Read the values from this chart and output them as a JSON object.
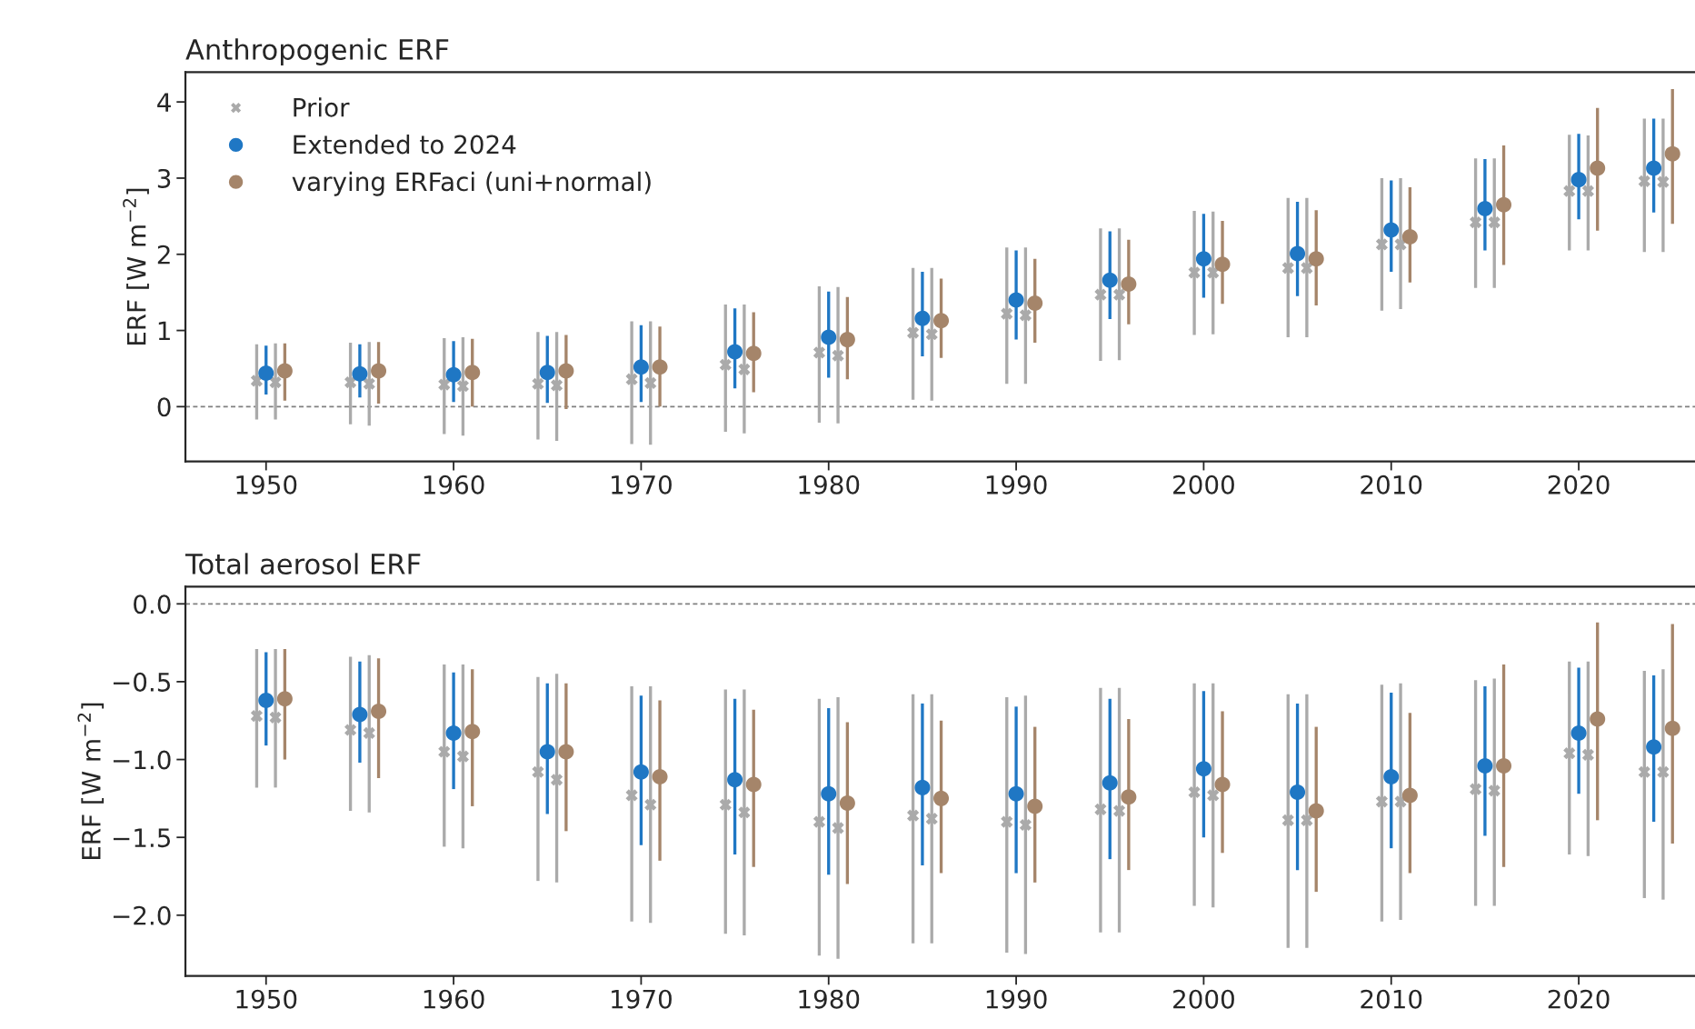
{
  "chart_data": [
    {
      "type": "scatter",
      "title": "Anthropogenic ERF",
      "ylabel": "ERF [W m$^{−2}$]",
      "xlim": [
        1945.7,
        2026.2
      ],
      "ylim": [
        -0.72,
        4.39
      ],
      "xticks": [
        1950,
        1960,
        1970,
        1980,
        1990,
        2000,
        2010,
        2020
      ],
      "yticks": [
        0,
        1,
        2,
        3,
        4
      ],
      "legend": "top left",
      "grid": false,
      "ref_lines": [
        {
          "axis": "y",
          "value": 0,
          "color": "#808080",
          "line_style": "dashed"
        }
      ],
      "series": [
        {
          "name": "Prior",
          "color": "#aaaaaa",
          "marker": "cross",
          "x": [
            1949.5,
            1954.5,
            1959.5,
            1964.5,
            1969.5,
            1974.5,
            1979.5,
            1984.5,
            1989.5,
            1994.5,
            1999.5,
            2004.5,
            2009.5,
            2014.5,
            2019.5,
            2023.5
          ],
          "values": [
            0.34,
            0.32,
            0.29,
            0.3,
            0.36,
            0.55,
            0.71,
            0.97,
            1.22,
            1.47,
            1.76,
            1.82,
            2.13,
            2.42,
            2.83,
            2.96
          ],
          "errors": [
            [
              -0.17,
              0.82
            ],
            [
              -0.23,
              0.84
            ],
            [
              -0.36,
              0.9
            ],
            [
              -0.43,
              0.98
            ],
            [
              -0.49,
              1.12
            ],
            [
              -0.33,
              1.34
            ],
            [
              -0.21,
              1.58
            ],
            [
              0.09,
              1.82
            ],
            [
              0.3,
              2.09
            ],
            [
              0.6,
              2.34
            ],
            [
              0.94,
              2.57
            ],
            [
              0.91,
              2.74
            ],
            [
              1.26,
              3.0
            ],
            [
              1.56,
              3.26
            ],
            [
              2.05,
              3.57
            ],
            [
              2.03,
              3.78
            ]
          ]
        },
        {
          "color": "#aaaaaa",
          "marker": "cross",
          "x": [
            1950.5,
            1955.5,
            1960.5,
            1965.5,
            1970.5,
            1975.5,
            1980.5,
            1985.5,
            1990.5,
            1995.5,
            2000.5,
            2005.5,
            2010.5,
            2015.5,
            2020.5,
            2024.5
          ],
          "values": [
            0.32,
            0.3,
            0.27,
            0.28,
            0.31,
            0.49,
            0.67,
            0.95,
            1.2,
            1.47,
            1.76,
            1.82,
            2.13,
            2.42,
            2.83,
            2.95
          ],
          "errors": [
            [
              -0.17,
              0.83
            ],
            [
              -0.25,
              0.85
            ],
            [
              -0.38,
              0.91
            ],
            [
              -0.45,
              0.98
            ],
            [
              -0.5,
              1.12
            ],
            [
              -0.35,
              1.34
            ],
            [
              -0.22,
              1.57
            ],
            [
              0.08,
              1.82
            ],
            [
              0.3,
              2.09
            ],
            [
              0.61,
              2.34
            ],
            [
              0.95,
              2.56
            ],
            [
              0.91,
              2.74
            ],
            [
              1.28,
              3.0
            ],
            [
              1.56,
              3.26
            ],
            [
              2.05,
              3.56
            ],
            [
              2.03,
              3.78
            ]
          ]
        },
        {
          "name": "Extended to 2024",
          "color": "#1f77c4",
          "marker": "circle",
          "x": [
            1950,
            1955,
            1960,
            1965,
            1970,
            1975,
            1980,
            1985,
            1990,
            1995,
            2000,
            2005,
            2010,
            2015,
            2020,
            2024
          ],
          "values": [
            0.44,
            0.43,
            0.42,
            0.45,
            0.52,
            0.72,
            0.91,
            1.16,
            1.4,
            1.66,
            1.94,
            2.01,
            2.32,
            2.6,
            2.98,
            3.13
          ],
          "errors": [
            [
              0.16,
              0.8
            ],
            [
              0.12,
              0.82
            ],
            [
              0.06,
              0.86
            ],
            [
              0.05,
              0.93
            ],
            [
              0.06,
              1.07
            ],
            [
              0.24,
              1.29
            ],
            [
              0.38,
              1.51
            ],
            [
              0.66,
              1.77
            ],
            [
              0.88,
              2.05
            ],
            [
              1.15,
              2.3
            ],
            [
              1.43,
              2.53
            ],
            [
              1.45,
              2.69
            ],
            [
              1.77,
              2.97
            ],
            [
              2.05,
              3.25
            ],
            [
              2.46,
              3.58
            ],
            [
              2.55,
              3.78
            ]
          ]
        },
        {
          "name": "varying ERFaci (uni+normal)",
          "color": "#a5856a",
          "marker": "circle",
          "x": [
            1951,
            1956,
            1961,
            1966,
            1971,
            1976,
            1981,
            1986,
            1991,
            1996,
            2001,
            2006,
            2011,
            2016,
            2021,
            2025
          ],
          "values": [
            0.47,
            0.47,
            0.45,
            0.47,
            0.52,
            0.7,
            0.88,
            1.13,
            1.36,
            1.61,
            1.87,
            1.94,
            2.23,
            2.65,
            3.13,
            3.32
          ],
          "errors": [
            [
              0.08,
              0.83
            ],
            [
              0.04,
              0.85
            ],
            [
              0.0,
              0.89
            ],
            [
              -0.03,
              0.94
            ],
            [
              0.0,
              1.05
            ],
            [
              0.19,
              1.24
            ],
            [
              0.36,
              1.44
            ],
            [
              0.64,
              1.68
            ],
            [
              0.84,
              1.94
            ],
            [
              1.08,
              2.19
            ],
            [
              1.35,
              2.44
            ],
            [
              1.33,
              2.58
            ],
            [
              1.63,
              2.88
            ],
            [
              1.86,
              3.43
            ],
            [
              2.31,
              3.92
            ],
            [
              2.4,
              4.17
            ]
          ]
        }
      ]
    },
    {
      "type": "scatter",
      "title": "Total aerosol ERF",
      "ylabel": "ERF [W m$^{−2}$]",
      "xlim": [
        1945.7,
        2026.2
      ],
      "ylim": [
        -2.39,
        0.11
      ],
      "xticks": [
        1950,
        1960,
        1970,
        1980,
        1990,
        2000,
        2010,
        2020
      ],
      "yticks": [
        {
          "value": -2.0,
          "label": "−2.0"
        },
        {
          "value": -1.5,
          "label": "−1.5"
        },
        {
          "value": -1.0,
          "label": "−1.0"
        },
        {
          "value": -0.5,
          "label": "−0.5"
        },
        {
          "value": 0.0,
          "label": "0.0"
        }
      ],
      "grid": false,
      "ref_lines": [
        {
          "axis": "y",
          "value": 0,
          "color": "#808080",
          "line_style": "dashed"
        }
      ],
      "series": [
        {
          "color": "#aaaaaa",
          "marker": "cross",
          "x": [
            1949.5,
            1954.5,
            1959.5,
            1964.5,
            1969.5,
            1974.5,
            1979.5,
            1984.5,
            1989.5,
            1994.5,
            1999.5,
            2004.5,
            2009.5,
            2014.5,
            2019.5,
            2023.5
          ],
          "values": [
            -0.72,
            -0.81,
            -0.95,
            -1.08,
            -1.23,
            -1.29,
            -1.4,
            -1.36,
            -1.4,
            -1.32,
            -1.21,
            -1.39,
            -1.27,
            -1.19,
            -0.96,
            -1.08
          ],
          "errors": [
            [
              -1.18,
              -0.29
            ],
            [
              -1.33,
              -0.34
            ],
            [
              -1.56,
              -0.39
            ],
            [
              -1.78,
              -0.47
            ],
            [
              -2.04,
              -0.53
            ],
            [
              -2.12,
              -0.55
            ],
            [
              -2.26,
              -0.61
            ],
            [
              -2.18,
              -0.58
            ],
            [
              -2.24,
              -0.6
            ],
            [
              -2.11,
              -0.54
            ],
            [
              -1.94,
              -0.51
            ],
            [
              -2.21,
              -0.58
            ],
            [
              -2.04,
              -0.52
            ],
            [
              -1.94,
              -0.49
            ],
            [
              -1.61,
              -0.37
            ],
            [
              -1.89,
              -0.43
            ]
          ]
        },
        {
          "color": "#aaaaaa",
          "marker": "cross",
          "x": [
            1950.5,
            1955.5,
            1960.5,
            1965.5,
            1970.5,
            1975.5,
            1980.5,
            1985.5,
            1990.5,
            1995.5,
            2000.5,
            2005.5,
            2010.5,
            2015.5,
            2020.5,
            2024.5
          ],
          "values": [
            -0.73,
            -0.83,
            -0.98,
            -1.13,
            -1.29,
            -1.34,
            -1.44,
            -1.38,
            -1.42,
            -1.33,
            -1.23,
            -1.39,
            -1.27,
            -1.2,
            -0.97,
            -1.08
          ],
          "errors": [
            [
              -1.18,
              -0.29
            ],
            [
              -1.34,
              -0.33
            ],
            [
              -1.57,
              -0.39
            ],
            [
              -1.79,
              -0.45
            ],
            [
              -2.05,
              -0.53
            ],
            [
              -2.13,
              -0.55
            ],
            [
              -2.28,
              -0.6
            ],
            [
              -2.18,
              -0.58
            ],
            [
              -2.25,
              -0.59
            ],
            [
              -2.11,
              -0.54
            ],
            [
              -1.95,
              -0.51
            ],
            [
              -2.21,
              -0.58
            ],
            [
              -2.03,
              -0.51
            ],
            [
              -1.94,
              -0.48
            ],
            [
              -1.62,
              -0.37
            ],
            [
              -1.9,
              -0.42
            ]
          ]
        },
        {
          "color": "#1f77c4",
          "marker": "circle",
          "x": [
            1950,
            1955,
            1960,
            1965,
            1970,
            1975,
            1980,
            1985,
            1990,
            1995,
            2000,
            2005,
            2010,
            2015,
            2020,
            2024
          ],
          "values": [
            -0.62,
            -0.71,
            -0.83,
            -0.95,
            -1.08,
            -1.13,
            -1.22,
            -1.18,
            -1.22,
            -1.15,
            -1.06,
            -1.21,
            -1.11,
            -1.04,
            -0.83,
            -0.92
          ],
          "errors": [
            [
              -0.91,
              -0.31
            ],
            [
              -1.02,
              -0.37
            ],
            [
              -1.19,
              -0.44
            ],
            [
              -1.35,
              -0.51
            ],
            [
              -1.55,
              -0.59
            ],
            [
              -1.61,
              -0.61
            ],
            [
              -1.74,
              -0.67
            ],
            [
              -1.68,
              -0.64
            ],
            [
              -1.73,
              -0.66
            ],
            [
              -1.64,
              -0.61
            ],
            [
              -1.5,
              -0.56
            ],
            [
              -1.71,
              -0.64
            ],
            [
              -1.57,
              -0.57
            ],
            [
              -1.49,
              -0.53
            ],
            [
              -1.22,
              -0.41
            ],
            [
              -1.4,
              -0.46
            ]
          ]
        },
        {
          "color": "#a5856a",
          "marker": "circle",
          "x": [
            1951,
            1956,
            1961,
            1966,
            1971,
            1976,
            1981,
            1986,
            1991,
            1996,
            2001,
            2006,
            2011,
            2016,
            2021,
            2025
          ],
          "values": [
            -0.61,
            -0.69,
            -0.82,
            -0.95,
            -1.11,
            -1.16,
            -1.28,
            -1.25,
            -1.3,
            -1.24,
            -1.16,
            -1.33,
            -1.23,
            -1.04,
            -0.74,
            -0.8
          ],
          "errors": [
            [
              -1.0,
              -0.29
            ],
            [
              -1.12,
              -0.35
            ],
            [
              -1.3,
              -0.42
            ],
            [
              -1.46,
              -0.51
            ],
            [
              -1.65,
              -0.62
            ],
            [
              -1.69,
              -0.68
            ],
            [
              -1.8,
              -0.76
            ],
            [
              -1.73,
              -0.75
            ],
            [
              -1.79,
              -0.79
            ],
            [
              -1.71,
              -0.74
            ],
            [
              -1.6,
              -0.69
            ],
            [
              -1.85,
              -0.79
            ],
            [
              -1.73,
              -0.7
            ],
            [
              -1.69,
              -0.39
            ],
            [
              -1.39,
              -0.12
            ],
            [
              -1.54,
              -0.13
            ]
          ]
        }
      ]
    }
  ]
}
